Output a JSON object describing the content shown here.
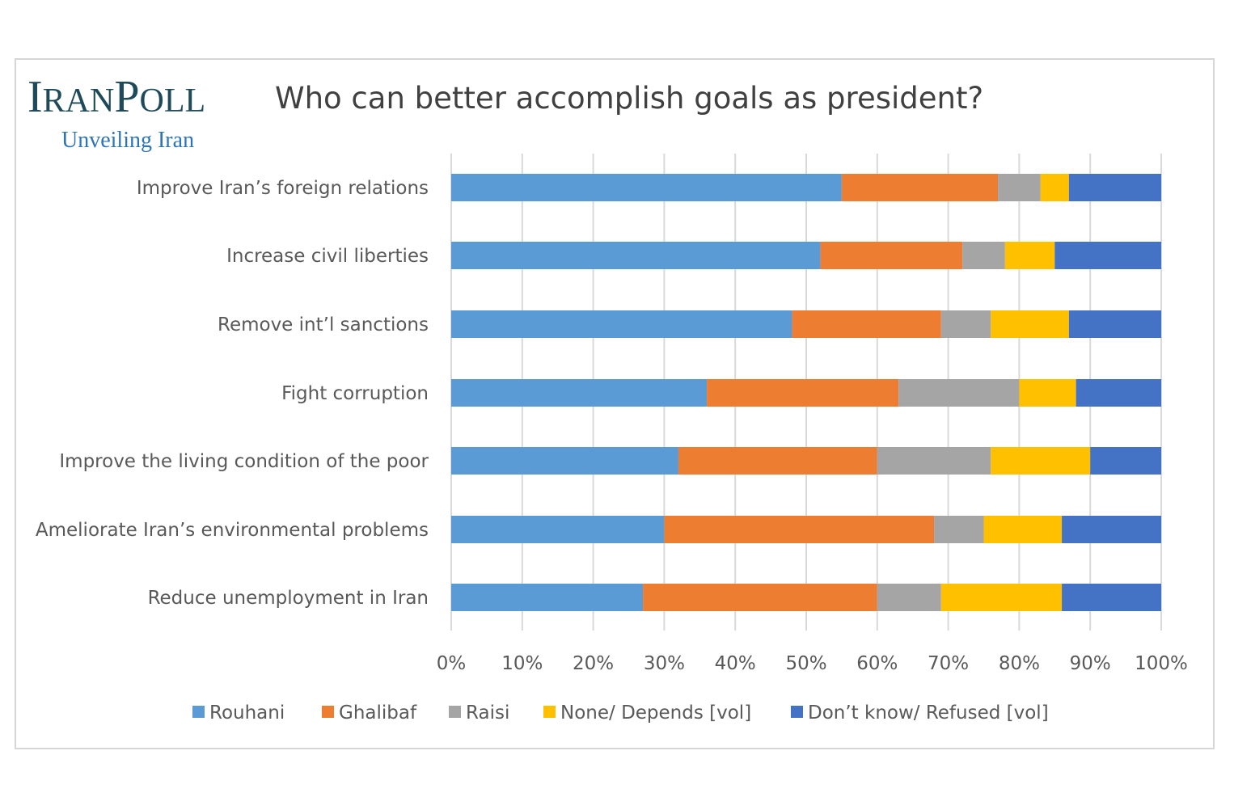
{
  "brand": {
    "first_big": "I",
    "first_small": "RAN",
    "second_big": "P",
    "second_small": "OLL",
    "tagline": "Unveiling Iran"
  },
  "colors": {
    "Rouhani": "#5b9bd5",
    "Ghalibaf": "#ed7d31",
    "Raisi": "#a5a5a5",
    "None/ Depends [vol]": "#ffc000",
    "Don’t know/ Refused [vol]": "#4472c4",
    "grid": "#d9d9d9",
    "text": "#595959"
  },
  "chart_data": {
    "type": "bar",
    "orientation": "horizontal",
    "stacked": "100%",
    "title": "Who can better accomplish goals as president?",
    "categories": [
      "Improve Iran’s foreign relations",
      "Increase civil liberties",
      "Remove int’l sanctions",
      "Fight corruption",
      "Improve the living condition of the poor",
      "Ameliorate Iran’s environmental problems",
      "Reduce unemployment in Iran"
    ],
    "series": [
      {
        "name": "Rouhani",
        "values": [
          55,
          52,
          48,
          36,
          32,
          30,
          27
        ]
      },
      {
        "name": "Ghalibaf",
        "values": [
          22,
          20,
          21,
          27,
          28,
          38,
          33
        ]
      },
      {
        "name": "Raisi",
        "values": [
          6,
          6,
          7,
          17,
          16,
          7,
          9
        ]
      },
      {
        "name": "None/ Depends [vol]",
        "values": [
          4,
          7,
          11,
          8,
          14,
          11,
          17
        ]
      },
      {
        "name": "Don’t know/ Refused [vol]",
        "values": [
          13,
          15,
          13,
          12,
          10,
          14,
          14
        ]
      }
    ],
    "xlim": [
      0,
      100
    ],
    "xticks": [
      "0%",
      "10%",
      "20%",
      "30%",
      "40%",
      "50%",
      "60%",
      "70%",
      "80%",
      "90%",
      "100%"
    ],
    "grid": true,
    "legend": "bottom"
  }
}
